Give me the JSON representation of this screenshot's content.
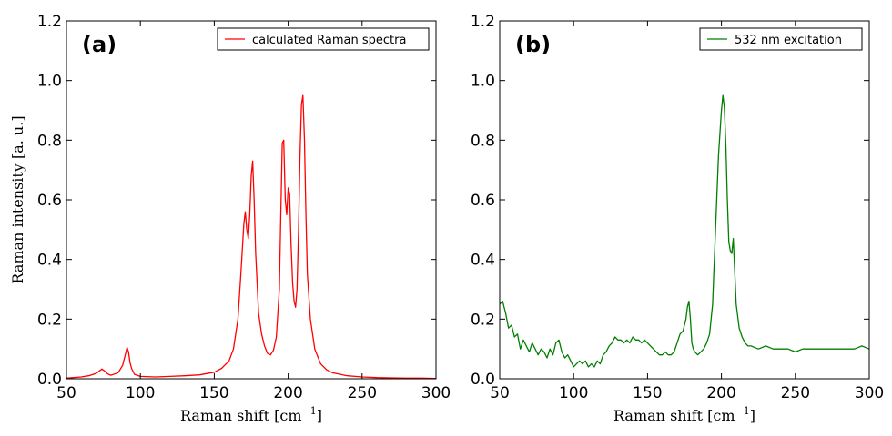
{
  "chart_data": [
    {
      "type": "line",
      "panel_label": "(a)",
      "xlabel": "Raman shift [cm",
      "xlabel_sup": "−1",
      "xlabel_end": "]",
      "ylabel": "Raman intensity [a. u.]",
      "xlim": [
        50,
        300
      ],
      "ylim": [
        0,
        1.2
      ],
      "xticks": [
        50,
        100,
        150,
        200,
        250,
        300
      ],
      "yticks": [
        0.0,
        0.2,
        0.4,
        0.6,
        0.8,
        1.0,
        1.2
      ],
      "legend_location": "top-right",
      "series": [
        {
          "name": "calculated Raman spectra",
          "color": "#ff0000",
          "x": [
            50,
            60,
            65,
            70,
            72,
            74,
            76,
            78,
            80,
            85,
            88,
            90,
            91,
            92,
            93,
            94,
            96,
            100,
            110,
            120,
            130,
            140,
            150,
            155,
            160,
            163,
            166,
            168,
            170,
            171,
            172,
            173,
            174,
            175,
            176,
            177,
            178,
            180,
            182,
            184,
            186,
            188,
            190,
            192,
            194,
            195,
            196,
            197,
            198,
            199,
            200,
            201,
            202,
            203,
            204,
            205,
            206,
            207,
            208,
            209,
            210,
            211,
            212,
            213,
            215,
            218,
            222,
            226,
            230,
            240,
            250,
            260,
            270,
            280,
            290,
            300
          ],
          "y": [
            0.002,
            0.006,
            0.01,
            0.018,
            0.025,
            0.033,
            0.025,
            0.016,
            0.012,
            0.02,
            0.045,
            0.085,
            0.105,
            0.09,
            0.055,
            0.035,
            0.015,
            0.008,
            0.006,
            0.008,
            0.01,
            0.013,
            0.022,
            0.035,
            0.06,
            0.1,
            0.2,
            0.35,
            0.52,
            0.56,
            0.5,
            0.47,
            0.55,
            0.68,
            0.73,
            0.6,
            0.42,
            0.22,
            0.15,
            0.11,
            0.085,
            0.08,
            0.095,
            0.14,
            0.3,
            0.55,
            0.79,
            0.8,
            0.6,
            0.55,
            0.64,
            0.62,
            0.45,
            0.32,
            0.26,
            0.24,
            0.3,
            0.5,
            0.75,
            0.92,
            0.95,
            0.8,
            0.55,
            0.35,
            0.2,
            0.1,
            0.05,
            0.03,
            0.02,
            0.01,
            0.006,
            0.004,
            0.003,
            0.002,
            0.002,
            0.001
          ]
        }
      ]
    },
    {
      "type": "line",
      "panel_label": "(b)",
      "xlabel": "Raman shift [cm",
      "xlabel_sup": "−1",
      "xlabel_end": "]",
      "ylabel": "",
      "xlim": [
        50,
        300
      ],
      "ylim": [
        0,
        1.2
      ],
      "xticks": [
        50,
        100,
        150,
        200,
        250,
        300
      ],
      "yticks": [
        0.0,
        0.2,
        0.4,
        0.6,
        0.8,
        1.0,
        1.2
      ],
      "legend_location": "top-right",
      "series": [
        {
          "name": "532 nm excitation",
          "color": "#007f00",
          "x": [
            50,
            52,
            54,
            56,
            58,
            60,
            62,
            64,
            66,
            68,
            70,
            72,
            74,
            76,
            78,
            80,
            82,
            84,
            86,
            88,
            90,
            92,
            94,
            96,
            98,
            100,
            102,
            104,
            106,
            108,
            110,
            112,
            114,
            116,
            118,
            120,
            122,
            124,
            126,
            128,
            130,
            132,
            134,
            136,
            138,
            140,
            142,
            144,
            146,
            148,
            150,
            152,
            154,
            156,
            158,
            160,
            162,
            164,
            166,
            168,
            170,
            172,
            174,
            176,
            177,
            178,
            179,
            180,
            181,
            182,
            184,
            186,
            188,
            190,
            192,
            194,
            196,
            198,
            200,
            201,
            202,
            203,
            204,
            205,
            206,
            207,
            208,
            209,
            210,
            212,
            214,
            216,
            218,
            220,
            225,
            230,
            235,
            240,
            245,
            250,
            255,
            260,
            265,
            270,
            275,
            280,
            285,
            290,
            295,
            300
          ],
          "y": [
            0.25,
            0.26,
            0.22,
            0.17,
            0.18,
            0.14,
            0.15,
            0.1,
            0.13,
            0.11,
            0.09,
            0.12,
            0.1,
            0.08,
            0.1,
            0.09,
            0.07,
            0.1,
            0.08,
            0.12,
            0.13,
            0.09,
            0.07,
            0.08,
            0.06,
            0.04,
            0.05,
            0.06,
            0.05,
            0.06,
            0.04,
            0.05,
            0.04,
            0.06,
            0.05,
            0.08,
            0.09,
            0.11,
            0.12,
            0.14,
            0.13,
            0.13,
            0.12,
            0.13,
            0.12,
            0.14,
            0.13,
            0.13,
            0.12,
            0.13,
            0.12,
            0.11,
            0.1,
            0.09,
            0.08,
            0.08,
            0.09,
            0.08,
            0.08,
            0.09,
            0.12,
            0.15,
            0.16,
            0.2,
            0.24,
            0.26,
            0.2,
            0.12,
            0.1,
            0.09,
            0.08,
            0.09,
            0.1,
            0.12,
            0.15,
            0.25,
            0.5,
            0.75,
            0.9,
            0.95,
            0.91,
            0.78,
            0.6,
            0.46,
            0.43,
            0.42,
            0.47,
            0.36,
            0.25,
            0.17,
            0.14,
            0.12,
            0.11,
            0.11,
            0.1,
            0.11,
            0.1,
            0.1,
            0.1,
            0.09,
            0.1,
            0.1,
            0.1,
            0.1,
            0.1,
            0.1,
            0.1,
            0.1,
            0.11,
            0.1
          ]
        }
      ]
    }
  ]
}
